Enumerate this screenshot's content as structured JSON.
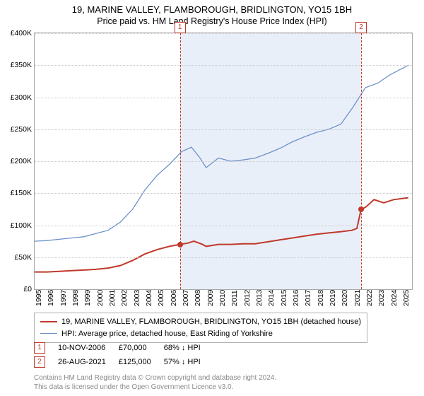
{
  "title": "19, MARINE VALLEY, FLAMBOROUGH, BRIDLINGTON, YO15 1BH",
  "subtitle": "Price paid vs. HM Land Registry's House Price Index (HPI)",
  "chart": {
    "type": "line",
    "background_color": "#ffffff",
    "shaded_band_color": "#e9eff9",
    "grid_color": "#c9c9c9",
    "axis_color": "#a8a8a8",
    "label_fontsize": 10.5,
    "xlim": [
      1995,
      2025.8
    ],
    "ylim": [
      0,
      400000
    ],
    "ytick_step": 50000,
    "yticks": [
      "£0",
      "£50K",
      "£100K",
      "£150K",
      "£200K",
      "£250K",
      "£300K",
      "£350K",
      "£400K"
    ],
    "xticks": [
      1995,
      1996,
      1997,
      1998,
      1999,
      2000,
      2001,
      2002,
      2003,
      2004,
      2005,
      2006,
      2007,
      2008,
      2009,
      2010,
      2011,
      2012,
      2013,
      2014,
      2015,
      2016,
      2017,
      2018,
      2019,
      2020,
      2021,
      2022,
      2023,
      2024,
      2025
    ],
    "series": [
      {
        "id": "property",
        "label": "19, MARINE VALLEY, FLAMBOROUGH, BRIDLINGTON, YO15 1BH (detached house)",
        "color": "#c0392b",
        "line_width": 2,
        "data": [
          [
            1995,
            27000
          ],
          [
            1996,
            27000
          ],
          [
            1997,
            28000
          ],
          [
            1998,
            29000
          ],
          [
            1999,
            30000
          ],
          [
            2000,
            31000
          ],
          [
            2001,
            33000
          ],
          [
            2002,
            37000
          ],
          [
            2003,
            45000
          ],
          [
            2004,
            55000
          ],
          [
            2005,
            62000
          ],
          [
            2006,
            67000
          ],
          [
            2006.86,
            70000
          ],
          [
            2007.5,
            72000
          ],
          [
            2008,
            75000
          ],
          [
            2008.7,
            70000
          ],
          [
            2009,
            67000
          ],
          [
            2010,
            70000
          ],
          [
            2011,
            70000
          ],
          [
            2012,
            71000
          ],
          [
            2013,
            71000
          ],
          [
            2014,
            74000
          ],
          [
            2015,
            77000
          ],
          [
            2016,
            80000
          ],
          [
            2017,
            83000
          ],
          [
            2018,
            86000
          ],
          [
            2019,
            88000
          ],
          [
            2020,
            90000
          ],
          [
            2020.9,
            92000
          ],
          [
            2021.3,
            95000
          ],
          [
            2021.65,
            125000
          ],
          [
            2022,
            128000
          ],
          [
            2022.7,
            140000
          ],
          [
            2023.5,
            135000
          ],
          [
            2024.3,
            140000
          ],
          [
            2025.5,
            143000
          ]
        ]
      },
      {
        "id": "hpi",
        "label": "HPI: Average price, detached house, East Riding of Yorkshire",
        "color": "#6e91c8",
        "line_width": 1.3,
        "data": [
          [
            1995,
            75000
          ],
          [
            1996,
            76000
          ],
          [
            1997,
            78000
          ],
          [
            1998,
            80000
          ],
          [
            1999,
            82000
          ],
          [
            2000,
            87000
          ],
          [
            2001,
            92000
          ],
          [
            2002,
            105000
          ],
          [
            2003,
            125000
          ],
          [
            2004,
            155000
          ],
          [
            2005,
            178000
          ],
          [
            2006,
            195000
          ],
          [
            2007,
            215000
          ],
          [
            2007.8,
            222000
          ],
          [
            2008.5,
            205000
          ],
          [
            2009,
            190000
          ],
          [
            2010,
            205000
          ],
          [
            2011,
            200000
          ],
          [
            2012,
            202000
          ],
          [
            2013,
            205000
          ],
          [
            2014,
            212000
          ],
          [
            2015,
            220000
          ],
          [
            2016,
            230000
          ],
          [
            2017,
            238000
          ],
          [
            2018,
            245000
          ],
          [
            2019,
            250000
          ],
          [
            2020,
            258000
          ],
          [
            2021,
            285000
          ],
          [
            2022,
            315000
          ],
          [
            2023,
            322000
          ],
          [
            2024,
            335000
          ],
          [
            2025.5,
            350000
          ]
        ]
      }
    ],
    "markers": [
      {
        "n": "1",
        "x": 2006.86,
        "y": 70000,
        "color": "#c0392b"
      },
      {
        "n": "2",
        "x": 2021.65,
        "y": 125000,
        "color": "#c0392b"
      }
    ]
  },
  "transactions": [
    {
      "n": "1",
      "date": "10-NOV-2006",
      "price": "£70,000",
      "delta": "68% ↓ HPI"
    },
    {
      "n": "2",
      "date": "26-AUG-2021",
      "price": "£125,000",
      "delta": "57% ↓ HPI"
    }
  ],
  "footer": {
    "line1": "Contains HM Land Registry data © Crown copyright and database right 2024.",
    "line2": "This data is licensed under the Open Government Licence v3.0."
  }
}
